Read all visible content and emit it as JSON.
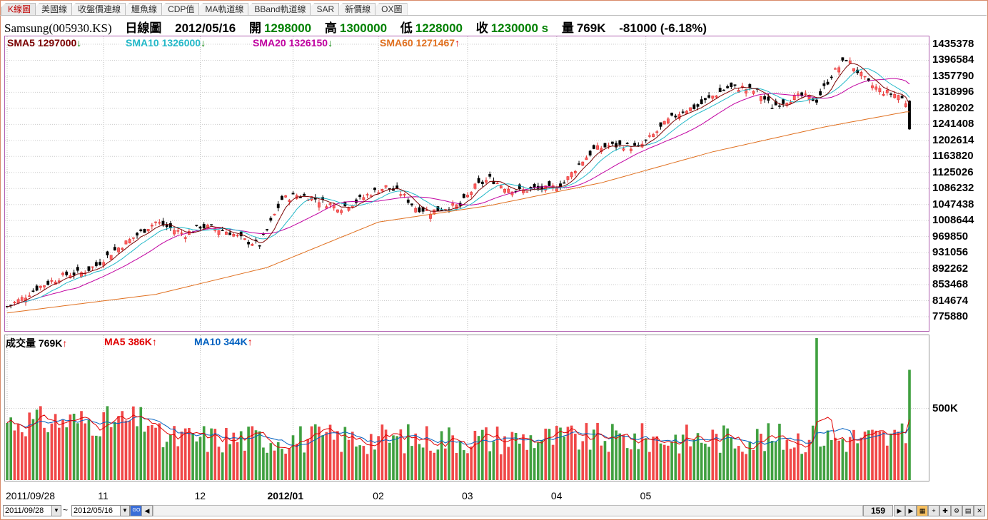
{
  "tabs": [
    "K線圖",
    "美國線",
    "收盤價連線",
    "鱷魚線",
    "CDP值",
    "MA軌道線",
    "BBand軌道線",
    "SAR",
    "新價線",
    "OX圖"
  ],
  "header": {
    "symbol": "Samsung(005930.KS)",
    "chart_type": "日線圖",
    "date": "2012/05/16",
    "open_label": "開",
    "open": "1298000",
    "high_label": "高",
    "high": "1300000",
    "low_label": "低",
    "low": "1228000",
    "close_label": "收",
    "close": "1230000 s",
    "vol_label": "量",
    "volume": "769K",
    "change": "-81000 (-6.18%)"
  },
  "price_legend": [
    {
      "label": "SMA5 1297000",
      "arrow": "↓",
      "color": "#7a0000"
    },
    {
      "label": "SMA10 1326000",
      "arrow": "↓",
      "color": "#22b8c8"
    },
    {
      "label": "SMA20 1326150",
      "arrow": "↓",
      "color": "#c000a0"
    },
    {
      "label": "SMA60 1271467",
      "arrow": "↑",
      "color": "#e07020"
    }
  ],
  "vol_legend": [
    {
      "label": "成交量 769K",
      "arrow": "↑",
      "color": "#000000"
    },
    {
      "label": "MA5 386K",
      "arrow": "↑",
      "color": "#e00000"
    },
    {
      "label": "MA10 344K",
      "arrow": "↑",
      "color": "#0060c0"
    }
  ],
  "y_ticks": [
    "1435378",
    "1396584",
    "1357790",
    "1318996",
    "1280202",
    "1241408",
    "1202614",
    "1163820",
    "1125026",
    "1086232",
    "1047438",
    "1008644",
    "969850",
    "931056",
    "892262",
    "853468",
    "814674",
    "775880"
  ],
  "vol_ticks": [
    "500K"
  ],
  "x_labels": [
    {
      "label": "2011/09/28",
      "bold": false
    },
    {
      "label": "11",
      "bold": false
    },
    {
      "label": "12",
      "bold": false
    },
    {
      "label": "2012/01",
      "bold": true
    },
    {
      "label": "02",
      "bold": false
    },
    {
      "label": "03",
      "bold": false
    },
    {
      "label": "04",
      "bold": false
    },
    {
      "label": "05",
      "bold": false
    }
  ],
  "bottom": {
    "start_date": "2011/09/28",
    "end_date": "2012/05/16",
    "range_sep": "~",
    "bars": "159",
    "go_label": "GO"
  },
  "chart_data": {
    "type": "candlestick",
    "title": "Samsung(005930.KS) 日線圖",
    "ylim": [
      757000,
      1455000
    ],
    "anchors": [
      [
        0,
        800000
      ],
      [
        4,
        820000
      ],
      [
        8,
        845000
      ],
      [
        12,
        862000
      ],
      [
        16,
        878000
      ],
      [
        20,
        882000
      ],
      [
        24,
        900000
      ],
      [
        28,
        930000
      ],
      [
        32,
        955000
      ],
      [
        36,
        980000
      ],
      [
        40,
        1005000
      ],
      [
        44,
        990000
      ],
      [
        48,
        975000
      ],
      [
        52,
        995000
      ],
      [
        56,
        990000
      ],
      [
        60,
        980000
      ],
      [
        64,
        960000
      ],
      [
        68,
        950000
      ],
      [
        70,
        985000
      ],
      [
        74,
        1060000
      ],
      [
        78,
        1070000
      ],
      [
        82,
        1065000
      ],
      [
        86,
        1050000
      ],
      [
        90,
        1040000
      ],
      [
        94,
        1055000
      ],
      [
        98,
        1075000
      ],
      [
        102,
        1090000
      ],
      [
        106,
        1075000
      ],
      [
        110,
        1040000
      ],
      [
        114,
        1030000
      ],
      [
        118,
        1040000
      ],
      [
        122,
        1045000
      ],
      [
        126,
        1090000
      ],
      [
        130,
        1110000
      ],
      [
        134,
        1090000
      ],
      [
        138,
        1080000
      ],
      [
        142,
        1085000
      ],
      [
        146,
        1085000
      ],
      [
        150,
        1100000
      ],
      [
        154,
        1145000
      ],
      [
        158,
        1180000
      ],
      [
        162,
        1190000
      ],
      [
        166,
        1190000
      ],
      [
        170,
        1185000
      ],
      [
        174,
        1215000
      ],
      [
        178,
        1250000
      ],
      [
        182,
        1275000
      ],
      [
        186,
        1285000
      ],
      [
        190,
        1310000
      ],
      [
        194,
        1330000
      ],
      [
        198,
        1330000
      ],
      [
        202,
        1320000
      ],
      [
        206,
        1285000
      ],
      [
        210,
        1300000
      ],
      [
        214,
        1310000
      ],
      [
        218,
        1300000
      ],
      [
        222,
        1360000
      ],
      [
        226,
        1400000
      ],
      [
        228,
        1380000
      ],
      [
        232,
        1340000
      ],
      [
        236,
        1320000
      ],
      [
        240,
        1312000
      ],
      [
        242,
        1295000
      ]
    ],
    "sma60_anchors": [
      [
        0,
        785000
      ],
      [
        40,
        830000
      ],
      [
        70,
        895000
      ],
      [
        100,
        1005000
      ],
      [
        130,
        1045000
      ],
      [
        160,
        1100000
      ],
      [
        190,
        1175000
      ],
      [
        220,
        1235000
      ],
      [
        242,
        1271467
      ]
    ],
    "sma_last": {
      "SMA5": 1297000,
      "SMA10": 1326000,
      "SMA20": 1326150,
      "SMA60": 1271467
    },
    "last_candle": {
      "date": "2012/05/16",
      "open": 1298000,
      "high": 1300000,
      "low": 1228000,
      "close": 1230000,
      "volume": 769000
    },
    "volume_ylim": [
      0,
      1000000
    ],
    "volume_last": 769000,
    "volume_ma5": 386000,
    "volume_ma10": 344000,
    "volume_spikes": [
      [
        218,
        990000
      ],
      [
        243,
        769000
      ]
    ],
    "x_tick_bars": [
      0,
      26,
      52,
      77,
      100,
      124,
      148,
      172
    ]
  }
}
